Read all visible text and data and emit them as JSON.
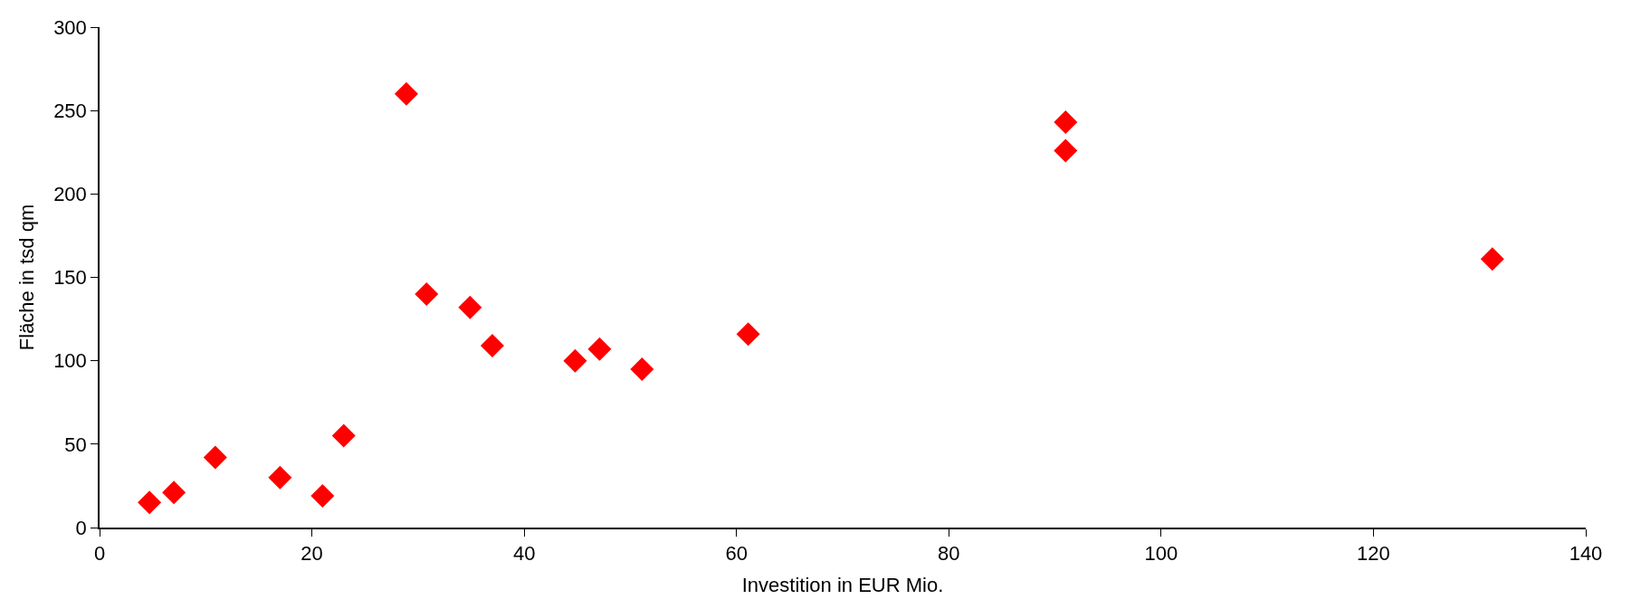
{
  "chart_data": {
    "type": "scatter",
    "xlabel": "Investition in EUR Mio.",
    "ylabel": "Fläche in tsd qm",
    "x": [
      4.7,
      7,
      10.9,
      17,
      21,
      23,
      28.9,
      30.8,
      34.9,
      37,
      44.8,
      47.1,
      51.1,
      61.1,
      91,
      91,
      131.2
    ],
    "series": [
      {
        "color": "#ff0000",
        "values": [
          15,
          21,
          42,
          30,
          19,
          55,
          260,
          140,
          132,
          109,
          100,
          107,
          95,
          116,
          243,
          226,
          161
        ]
      }
    ],
    "xlim": [
      0,
      140
    ],
    "xticks": [
      0,
      20,
      40,
      60,
      80,
      100,
      120,
      140
    ],
    "ylim": [
      0,
      300
    ],
    "yticks": [
      0,
      50,
      100,
      150,
      200,
      250,
      300
    ],
    "marker": "diamond"
  }
}
